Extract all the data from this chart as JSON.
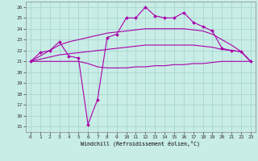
{
  "x": [
    0,
    1,
    2,
    3,
    4,
    5,
    6,
    7,
    8,
    9,
    10,
    11,
    12,
    13,
    14,
    15,
    16,
    17,
    18,
    19,
    20,
    21,
    22,
    23
  ],
  "line_marked": [
    21.0,
    21.8,
    22.0,
    22.8,
    21.5,
    21.3,
    15.2,
    17.5,
    23.2,
    23.5,
    25.0,
    25.0,
    26.0,
    25.2,
    25.0,
    25.0,
    25.5,
    24.6,
    24.2,
    23.8,
    22.2,
    22.0,
    21.9,
    21.0
  ],
  "line_upper": [
    21.0,
    21.5,
    22.0,
    22.5,
    22.8,
    23.0,
    23.2,
    23.4,
    23.6,
    23.7,
    23.8,
    23.9,
    24.0,
    24.0,
    24.0,
    24.0,
    24.0,
    23.9,
    23.8,
    23.5,
    23.0,
    22.5,
    21.9,
    21.0
  ],
  "line_mid": [
    21.0,
    21.2,
    21.4,
    21.6,
    21.7,
    21.8,
    21.9,
    22.0,
    22.1,
    22.2,
    22.3,
    22.4,
    22.5,
    22.5,
    22.5,
    22.5,
    22.5,
    22.5,
    22.4,
    22.3,
    22.1,
    22.0,
    21.9,
    21.0
  ],
  "line_lower": [
    21.0,
    21.0,
    21.0,
    21.0,
    21.0,
    21.0,
    20.8,
    20.5,
    20.4,
    20.4,
    20.4,
    20.5,
    20.5,
    20.6,
    20.6,
    20.7,
    20.7,
    20.8,
    20.8,
    20.9,
    21.0,
    21.0,
    21.0,
    21.0
  ],
  "bg_color": "#c8ece6",
  "grid_color": "#a0d4cc",
  "line_color": "#aa00aa",
  "xlabel": "Windchill (Refroidissement éolien,°C)",
  "ylim": [
    14.5,
    26.5
  ],
  "xlim": [
    -0.5,
    23.5
  ],
  "yticks": [
    15,
    16,
    17,
    18,
    19,
    20,
    21,
    22,
    23,
    24,
    25,
    26
  ],
  "xticks": [
    0,
    1,
    2,
    3,
    4,
    5,
    6,
    7,
    8,
    9,
    10,
    11,
    12,
    13,
    14,
    15,
    16,
    17,
    18,
    19,
    20,
    21,
    22,
    23
  ]
}
